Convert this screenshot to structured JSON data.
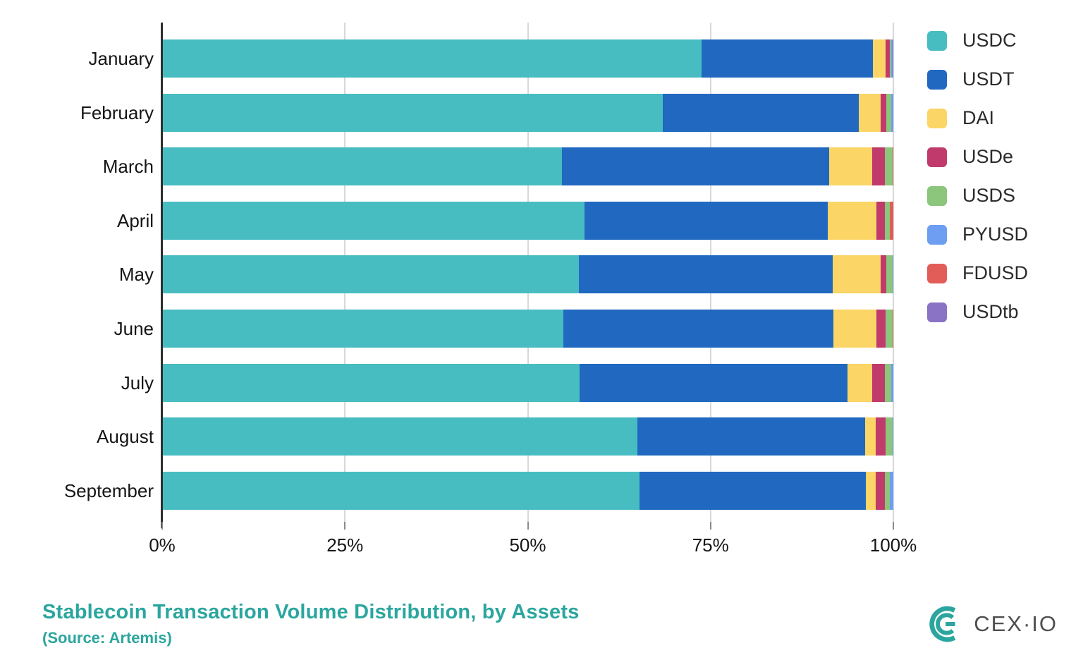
{
  "title": "Stablecoin Transaction Volume Distribution, by Assets",
  "subtitle": "(Source: Artemis)",
  "brand": {
    "logo_text": "CEX·IO",
    "accent_color": "#2BA69E"
  },
  "chart_data": {
    "type": "bar",
    "orientation": "horizontal",
    "stacked": true,
    "title": "Stablecoin Transaction Volume Distribution, by Assets",
    "xlabel": "",
    "ylabel": "",
    "xlim": [
      0,
      100
    ],
    "grid": true,
    "legend_position": "top-right",
    "categories": [
      "January",
      "February",
      "March",
      "April",
      "May",
      "June",
      "July",
      "August",
      "September"
    ],
    "x_axis": {
      "tick_values": [
        0,
        25,
        50,
        75,
        100
      ],
      "tick_labels": [
        "0%",
        "25%",
        "50%",
        "75%",
        "100%"
      ]
    },
    "series": [
      {
        "name": "USDC",
        "color": "#48BDC1",
        "values": [
          73.8,
          68.5,
          54.7,
          57.8,
          57.0,
          54.9,
          57.1,
          65.0,
          65.3
        ]
      },
      {
        "name": "USDT",
        "color": "#2068C0",
        "values": [
          23.4,
          26.8,
          36.5,
          33.2,
          34.7,
          36.9,
          36.6,
          31.1,
          30.9
        ]
      },
      {
        "name": "DAI",
        "color": "#FBD565",
        "values": [
          1.7,
          3.0,
          5.9,
          6.7,
          6.6,
          5.9,
          3.4,
          1.5,
          1.4
        ]
      },
      {
        "name": "USDe",
        "color": "#C03A6B",
        "values": [
          0.6,
          0.7,
          1.7,
          1.1,
          0.7,
          1.2,
          1.7,
          1.3,
          1.2
        ]
      },
      {
        "name": "USDS",
        "color": "#8CC57C",
        "values": [
          0.2,
          0.7,
          1.1,
          0.7,
          0.9,
          1.0,
          0.9,
          1.0,
          0.7
        ]
      },
      {
        "name": "PYUSD",
        "color": "#6D9EF1",
        "values": [
          0.2,
          0.3,
          0.0,
          0.0,
          0.1,
          0.0,
          0.3,
          0.1,
          0.5
        ]
      },
      {
        "name": "FDUSD",
        "color": "#E25D57",
        "values": [
          0.05,
          0.0,
          0.1,
          0.5,
          0.0,
          0.1,
          0.0,
          0.0,
          0.0
        ]
      },
      {
        "name": "USDtb",
        "color": "#8A72C5",
        "values": [
          0.05,
          0.0,
          0.0,
          0.0,
          0.0,
          0.0,
          0.0,
          0.0,
          0.0
        ]
      }
    ]
  }
}
